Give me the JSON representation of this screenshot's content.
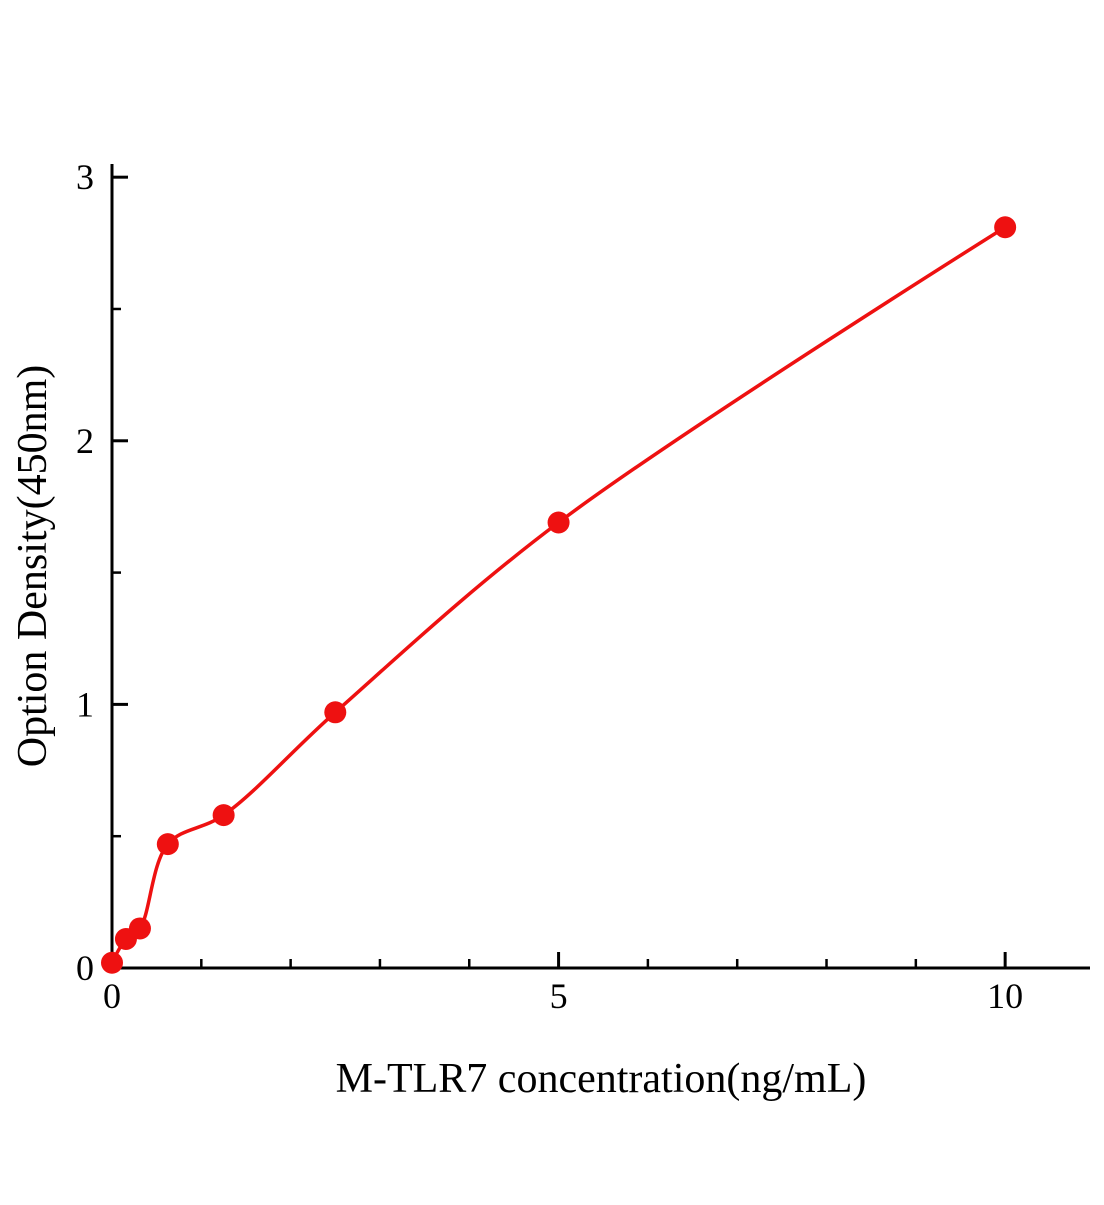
{
  "chart_data": {
    "type": "scatter",
    "title": "",
    "xlabel": "M-TLR7 concentration(ng/mL)",
    "ylabel": "Option Density(450nm)",
    "x": [
      0,
      0.156,
      0.313,
      0.625,
      1.25,
      2.5,
      5,
      10
    ],
    "y": [
      0.02,
      0.11,
      0.15,
      0.47,
      0.58,
      0.97,
      1.69,
      2.81
    ],
    "curve": "smooth fit through points",
    "xlim": [
      0,
      10.95
    ],
    "ylim": [
      0,
      3.05
    ],
    "x_ticks": [
      0,
      5,
      10
    ],
    "y_ticks": [
      0,
      1,
      2,
      3
    ],
    "x_minor_step": 1,
    "y_minor_step": 0.5,
    "grid": false,
    "legend": null,
    "marker_color": "#ee1111",
    "line_color": "#ee1111",
    "axis_color": "#000000"
  }
}
